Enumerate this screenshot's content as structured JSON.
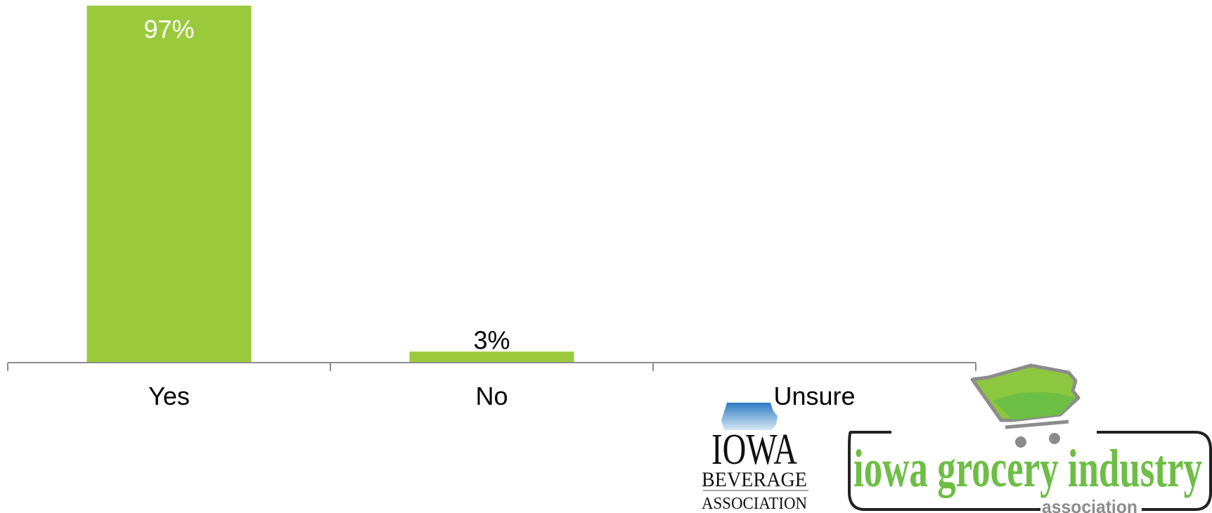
{
  "chart_data": {
    "type": "bar",
    "categories": [
      "Yes",
      "No",
      "Unsure"
    ],
    "values": [
      97,
      3,
      0
    ],
    "value_labels": [
      "97%",
      "3%",
      ""
    ],
    "ylim": [
      0,
      100
    ],
    "unit": "%",
    "grid": false,
    "colors": {
      "bar": "#9ACA3C",
      "axis": "#8C8C8C",
      "inside_label": "#FFFFFF",
      "outside_label": "#000000"
    }
  },
  "logos": {
    "beverage": {
      "name": "IOWA BEVERAGE ASSOCIATION",
      "line1": "IOWA",
      "line2": "BEVERAGE",
      "line3": "ASSOCIATION"
    },
    "grocery": {
      "name": "iowa grocery industry association",
      "line1": "iowa grocery industry",
      "line2": "association",
      "color": "#6DBE45"
    }
  }
}
